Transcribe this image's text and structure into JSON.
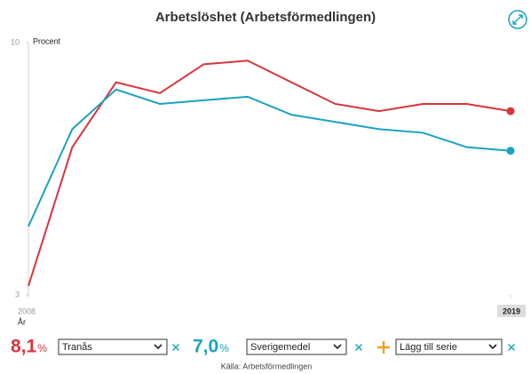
{
  "chart_data": {
    "type": "line",
    "title": "Arbetslöshet (Arbetsförmedlingen)",
    "ylabel": "Procent",
    "xlabel": "År",
    "x": [
      2008,
      2009,
      2010,
      2011,
      2012,
      2013,
      2014,
      2015,
      2016,
      2017,
      2018,
      2019
    ],
    "xlim": [
      2008,
      2019
    ],
    "xticks": [
      2008,
      2019
    ],
    "ylim": [
      3,
      10
    ],
    "yticks": [
      3,
      10
    ],
    "unit": "%",
    "series": [
      {
        "name": "Tranås",
        "color": "#d9343c",
        "values": [
          3.25,
          7.1,
          8.9,
          8.6,
          9.4,
          9.5,
          8.9,
          8.3,
          8.1,
          8.3,
          8.3,
          8.1
        ],
        "value_labels": [
          null,
          null,
          null,
          null,
          null,
          null,
          null,
          null,
          null,
          null,
          null,
          "8,1"
        ]
      },
      {
        "name": "Sverigemedel",
        "color": "#1aa3c0",
        "values": [
          4.9,
          7.6,
          8.7,
          8.3,
          8.4,
          8.5,
          8.0,
          7.8,
          7.6,
          7.5,
          7.1,
          7.0
        ],
        "value_labels": [
          null,
          null,
          null,
          null,
          null,
          null,
          null,
          null,
          null,
          null,
          null,
          "7,0"
        ]
      }
    ],
    "add_series": "Lägg till serie",
    "source": "Källa: Arbetsförmedlingen"
  }
}
